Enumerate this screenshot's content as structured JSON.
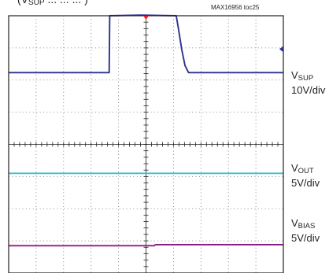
{
  "figure_id": "MAX16956 toc25",
  "top_caption": {
    "prefix": "(",
    "main": "V",
    "sub": "SUP",
    "rest": " ... ... ... )"
  },
  "chart_data": {
    "type": "line",
    "title": "",
    "xlabel": "",
    "ylabel": "",
    "grid": true,
    "divisions": {
      "x": 10,
      "y": 8
    },
    "colors": {
      "frame": "#231f20",
      "grid": "#6d6e71",
      "vsup": "#2b3290",
      "vout": "#3fbfcf",
      "vbias": "#8f1d86",
      "trigger": "#ed1c24"
    },
    "series": [
      {
        "id": "vsup",
        "name_main": "V",
        "name_sub": "SUP",
        "scale": "10V/div",
        "x": [
          0,
          3.66,
          3.68,
          4.8,
          6.1,
          6.18,
          6.3,
          6.42,
          6.55,
          10
        ],
        "y": [
          6.23,
          6.23,
          8.0,
          8.02,
          8.0,
          7.6,
          6.95,
          6.45,
          6.23,
          6.23
        ]
      },
      {
        "id": "vout",
        "name_main": "V",
        "name_sub": "OUT",
        "scale": "5V/div",
        "x": [
          0,
          10
        ],
        "y": [
          3.1,
          3.1
        ]
      },
      {
        "id": "vbias",
        "name_main": "V",
        "name_sub": "BIAS",
        "scale": "5V/div",
        "x": [
          0,
          5.3,
          5.35,
          10
        ],
        "y": [
          0.85,
          0.85,
          0.88,
          0.88
        ]
      }
    ]
  }
}
